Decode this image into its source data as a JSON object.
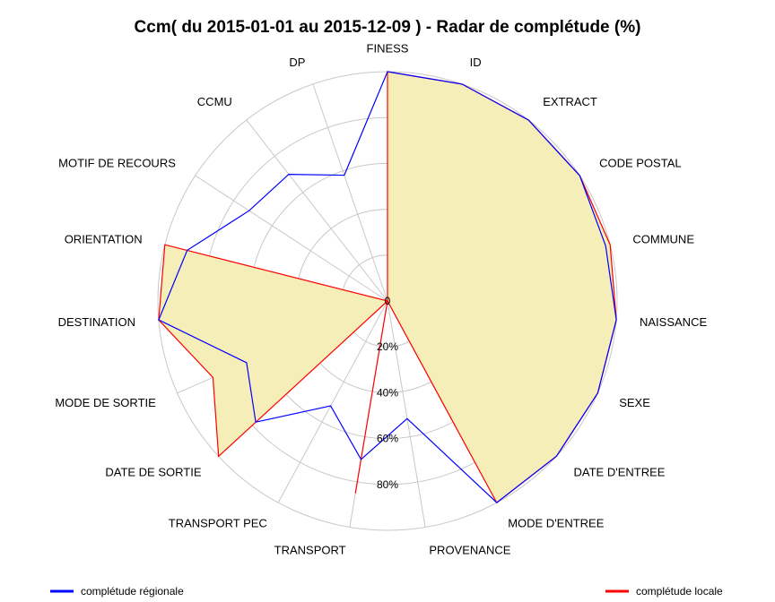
{
  "chart_data": {
    "type": "radar",
    "title": "Ccm( du 2015-01-01 au 2015-12-09 ) - Radar de complétude (%)",
    "axes": [
      "FINESS",
      "ID",
      "EXTRACT",
      "CODE POSTAL",
      "COMMUNE",
      "NAISSANCE",
      "SEXE",
      "DATE D'ENTREE",
      "MODE D'ENTREE",
      "PROVENANCE",
      "TRANSPORT",
      "TRANSPORT PEC",
      "DATE DE SORTIE",
      "MODE DE SORTIE",
      "DESTINATION",
      "ORIENTATION",
      "MOTIF DE RECOURS",
      "CCMU",
      "DP"
    ],
    "center_label": "0",
    "radial_ticks": [
      {
        "value": 20,
        "label": "20%"
      },
      {
        "value": 40,
        "label": "40%"
      },
      {
        "value": 60,
        "label": "60%"
      },
      {
        "value": 80,
        "label": "80%"
      }
    ],
    "rmax": 100,
    "series": [
      {
        "name": "complétude régionale",
        "color": "#0000ff",
        "values": [
          100,
          100,
          100,
          100,
          98,
          100,
          100,
          100,
          100,
          52,
          70,
          52,
          78,
          67,
          100,
          90,
          72,
          70,
          58
        ]
      },
      {
        "name": "complétude locale",
        "color": "#ff0000",
        "values": [
          100,
          100,
          100,
          100,
          100,
          100,
          100,
          100,
          100,
          0,
          85,
          0,
          100,
          83,
          100,
          100,
          0,
          0,
          0
        ]
      }
    ],
    "fill_color": "#f5eeb9",
    "grid": true,
    "legend": "bottom"
  }
}
